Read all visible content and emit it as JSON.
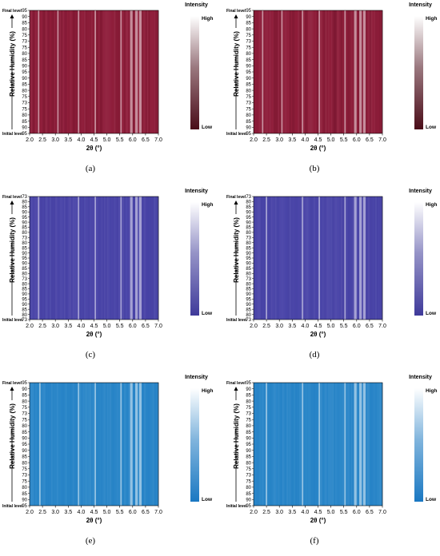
{
  "chart_data": [
    {
      "type": "heatmap",
      "panel_label": "(a)",
      "xlabel": "2θ (°)",
      "ylabel": "Relative Humidity (%)",
      "x_ticks": [
        "2.0",
        "2.5",
        "3.0",
        "3.5",
        "4.0",
        "4.5",
        "5.0",
        "5.5",
        "6.0",
        "6.5",
        "7.0"
      ],
      "xlim": [
        2.0,
        7.0
      ],
      "y_ticks": [
        "95",
        "90",
        "85",
        "80",
        "75",
        "73",
        "75",
        "80",
        "85",
        "90",
        "95",
        "90",
        "85",
        "80",
        "75",
        "73",
        "75",
        "80",
        "85",
        "90",
        "95"
      ],
      "y_start_label": "Initial level",
      "y_end_label": "Final level",
      "colorbar": {
        "title": "Intensity",
        "high": "High",
        "low": "Low",
        "low_color": "#4a0c18",
        "high_color": "#ffffff"
      },
      "base_color": "#8e1d3a",
      "bright_bands_2theta": [
        2.35,
        3.1,
        3.9,
        4.55,
        5.55,
        5.95,
        6.15,
        6.3
      ]
    },
    {
      "type": "heatmap",
      "panel_label": "(b)",
      "xlabel": "2θ (°)",
      "ylabel": "Relative Humidity (%)",
      "x_ticks": [
        "2.0",
        "2.5",
        "3.0",
        "3.5",
        "4.0",
        "4.5",
        "5.0",
        "5.5",
        "6.0",
        "6.5",
        "7.0"
      ],
      "xlim": [
        2.0,
        7.0
      ],
      "y_ticks": [
        "95",
        "90",
        "85",
        "80",
        "75",
        "73",
        "75",
        "80",
        "85",
        "90",
        "95",
        "90",
        "85",
        "80",
        "75",
        "73",
        "75",
        "80",
        "85",
        "90",
        "95"
      ],
      "y_start_label": "Initial level",
      "y_end_label": "Final level",
      "colorbar": {
        "title": "Intensity",
        "high": "High",
        "low": "Low",
        "low_color": "#4a0c18",
        "high_color": "#ffffff"
      },
      "base_color": "#8e1d3a",
      "bright_bands_2theta": [
        2.35,
        3.1,
        3.9,
        4.55,
        5.55,
        5.95,
        6.15,
        6.3
      ]
    },
    {
      "type": "heatmap",
      "panel_label": "(c)",
      "xlabel": "2θ (°)",
      "ylabel": "Relative Humidity (%)",
      "x_ticks": [
        "2.0",
        "2.5",
        "3.0",
        "3.5",
        "4.0",
        "4.5",
        "5.0",
        "5.5",
        "6.0",
        "6.5",
        "7.0"
      ],
      "xlim": [
        2.0,
        7.0
      ],
      "y_ticks": [
        "73",
        "80",
        "85",
        "90",
        "95",
        "90",
        "85",
        "80",
        "73",
        "80",
        "85",
        "90",
        "95",
        "90",
        "85",
        "80",
        "73",
        "80",
        "85",
        "90",
        "95",
        "90",
        "85",
        "80",
        "73"
      ],
      "y_start_label": "Initial level",
      "y_end_label": "Final level",
      "colorbar": {
        "title": "Intensity",
        "high": "High",
        "low": "Low",
        "low_color": "#3f3a9a",
        "high_color": "#ffffff"
      },
      "base_color": "#4a45a8",
      "bright_bands_2theta": [
        2.35,
        3.9,
        4.55,
        5.55,
        5.95,
        6.15,
        6.3
      ]
    },
    {
      "type": "heatmap",
      "panel_label": "(d)",
      "xlabel": "2θ (°)",
      "ylabel": "Relative Humidity (%)",
      "x_ticks": [
        "2.0",
        "2.5",
        "3.0",
        "3.5",
        "4.0",
        "4.5",
        "5.0",
        "5.5",
        "6.0",
        "6.5",
        "7.0"
      ],
      "xlim": [
        2.0,
        7.0
      ],
      "y_ticks": [
        "73",
        "80",
        "85",
        "90",
        "95",
        "90",
        "85",
        "80",
        "73",
        "80",
        "85",
        "90",
        "95",
        "90",
        "85",
        "80",
        "73",
        "80",
        "85",
        "90",
        "95",
        "90",
        "85",
        "80",
        "73"
      ],
      "y_start_label": "Initial level",
      "y_end_label": "Final level",
      "colorbar": {
        "title": "Intensity",
        "high": "High",
        "low": "Low",
        "low_color": "#3f3a9a",
        "high_color": "#ffffff"
      },
      "base_color": "#4a45a8",
      "bright_bands_2theta": [
        2.5,
        3.9,
        4.55,
        5.55,
        5.95,
        6.15,
        6.3
      ]
    },
    {
      "type": "heatmap",
      "panel_label": "(e)",
      "xlabel": "2θ (°)",
      "ylabel": "Relative Humidity (%)",
      "x_ticks": [
        "2.0",
        "2.5",
        "3.0",
        "3.5",
        "4.0",
        "4.5",
        "5.0",
        "5.5",
        "6.0",
        "6.5",
        "7.0"
      ],
      "xlim": [
        2.0,
        7.0
      ],
      "y_ticks": [
        "95",
        "90",
        "85",
        "80",
        "75",
        "73",
        "75",
        "80",
        "85",
        "90",
        "95",
        "90",
        "85",
        "80",
        "75",
        "73",
        "75",
        "80",
        "85",
        "90",
        "95"
      ],
      "y_start_label": "Initial level",
      "y_end_label": "Final level",
      "colorbar": {
        "title": "Intensity",
        "high": "High",
        "low": "Low",
        "low_color": "#1a78c2",
        "high_color": "#ffffff"
      },
      "base_color": "#2a86c8",
      "bright_bands_2theta": [
        2.4,
        3.9,
        4.55,
        5.55,
        5.95,
        6.15,
        6.3
      ]
    },
    {
      "type": "heatmap",
      "panel_label": "(f)",
      "xlabel": "2θ (°)",
      "ylabel": "Relative Humidity (%)",
      "x_ticks": [
        "2.0",
        "2.5",
        "3.0",
        "3.5",
        "4.0",
        "4.5",
        "5.0",
        "5.5",
        "6.0",
        "6.5",
        "7.0"
      ],
      "xlim": [
        2.0,
        7.0
      ],
      "y_ticks": [
        "95",
        "90",
        "85",
        "80",
        "75",
        "73",
        "75",
        "80",
        "85",
        "90",
        "95",
        "90",
        "85",
        "80",
        "75",
        "73",
        "75",
        "80",
        "85",
        "90",
        "95"
      ],
      "y_start_label": "Initial level",
      "y_end_label": "Final level",
      "colorbar": {
        "title": "Intensity",
        "high": "High",
        "low": "Low",
        "low_color": "#1a78c2",
        "high_color": "#ffffff"
      },
      "base_color": "#2a86c8",
      "bright_bands_2theta": [
        2.5,
        3.9,
        4.55,
        5.55,
        5.95,
        6.15,
        6.3
      ]
    }
  ]
}
